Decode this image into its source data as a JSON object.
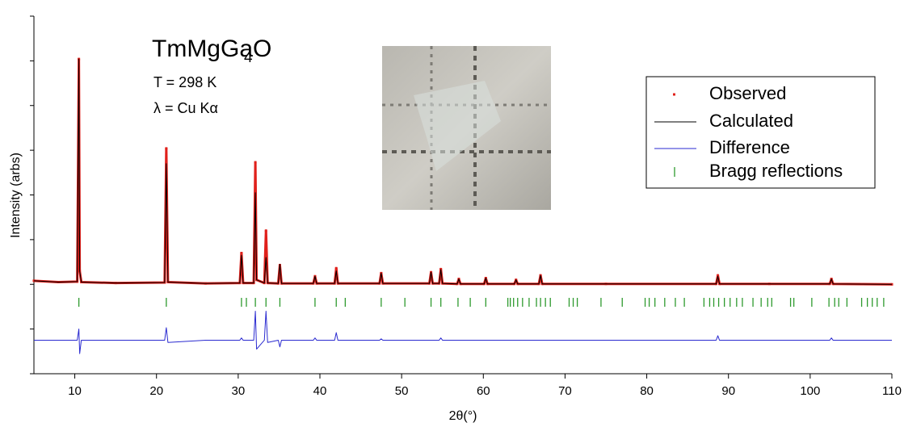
{
  "chart_data": {
    "type": "line",
    "title": "TmMgGaO",
    "title_subscript": "4",
    "annotations": [
      "T = 298 K",
      "λ = Cu Kα"
    ],
    "x_label": "2θ(°)",
    "y_label": "Intensity (arbs)",
    "x": [
      5,
      8,
      10.3,
      10.5,
      10.6,
      10.8,
      15,
      21.0,
      21.2,
      21.4,
      26,
      30.2,
      30.4,
      30.6,
      31.9,
      32.1,
      32.25,
      33.2,
      33.4,
      33.6,
      34.9,
      35.1,
      35.3,
      39.2,
      39.4,
      39.6,
      41.8,
      42.0,
      42.2,
      47.3,
      47.5,
      47.7,
      53.4,
      53.6,
      53.8,
      54.6,
      54.8,
      55.0,
      56.8,
      57.0,
      57.2,
      60.1,
      60.3,
      60.5,
      63.8,
      64.0,
      64.2,
      66.8,
      67.0,
      67.2,
      75,
      88.5,
      88.7,
      88.9,
      95,
      102.4,
      102.6,
      102.8,
      110
    ],
    "series": [
      {
        "name": "Observed",
        "color": "#e0201b",
        "values": [
          0.08,
          0.05,
          0.06,
          5.04,
          0.3,
          0.05,
          0.03,
          0.04,
          3.04,
          0.05,
          0.02,
          0.03,
          0.7,
          0.03,
          0.03,
          2.73,
          0.1,
          0.03,
          1.2,
          0.03,
          0.02,
          0.43,
          0.02,
          0.02,
          0.18,
          0.02,
          0.02,
          0.36,
          0.02,
          0.02,
          0.25,
          0.02,
          0.02,
          0.27,
          0.02,
          0.02,
          0.34,
          0.02,
          0.01,
          0.12,
          0.01,
          0.01,
          0.14,
          0.01,
          0.01,
          0.1,
          0.01,
          0.01,
          0.2,
          0.01,
          0.01,
          0.01,
          0.2,
          0.01,
          0.01,
          0.01,
          0.12,
          0.01,
          0
        ]
      },
      {
        "name": "Calculated",
        "color": "#000000",
        "values": [
          0.08,
          0.05,
          0.06,
          5.04,
          0.3,
          0.05,
          0.03,
          0.04,
          2.7,
          0.05,
          0.02,
          0.03,
          0.65,
          0.03,
          0.03,
          2.05,
          0.1,
          0.03,
          0.6,
          0.03,
          0.02,
          0.45,
          0.02,
          0.02,
          0.18,
          0.02,
          0.02,
          0.3,
          0.02,
          0.02,
          0.25,
          0.02,
          0.02,
          0.27,
          0.02,
          0.02,
          0.33,
          0.02,
          0.01,
          0.12,
          0.01,
          0.01,
          0.14,
          0.01,
          0.01,
          0.1,
          0.01,
          0.01,
          0.2,
          0.01,
          0.01,
          0.01,
          0.18,
          0.01,
          0.01,
          0.01,
          0.12,
          0.01,
          0
        ]
      },
      {
        "name": "Difference",
        "color": "#2a2ad0",
        "values": [
          -1.25,
          -1.25,
          -1.25,
          -1.0,
          -1.55,
          -1.25,
          -1.25,
          -1.25,
          -0.97,
          -1.3,
          -1.25,
          -1.25,
          -1.2,
          -1.25,
          -1.25,
          -0.6,
          -1.45,
          -1.25,
          -0.6,
          -1.3,
          -1.25,
          -1.4,
          -1.25,
          -1.25,
          -1.2,
          -1.25,
          -1.25,
          -1.08,
          -1.25,
          -1.25,
          -1.22,
          -1.25,
          -1.25,
          -1.25,
          -1.25,
          -1.25,
          -1.2,
          -1.25,
          -1.25,
          -1.25,
          -1.25,
          -1.25,
          -1.25,
          -1.25,
          -1.25,
          -1.25,
          -1.25,
          -1.25,
          -1.25,
          -1.25,
          -1.25,
          -1.25,
          -1.15,
          -1.25,
          -1.25,
          -1.25,
          -1.2,
          -1.25,
          -1.25
        ]
      },
      {
        "name": "Bragg reflections",
        "color": "#2e9a2e",
        "positions": [
          10.5,
          21.2,
          30.4,
          31.0,
          32.1,
          33.4,
          35.1,
          39.4,
          42.0,
          43.1,
          47.5,
          50.4,
          53.6,
          54.8,
          56.9,
          58.4,
          60.3,
          63.0,
          63.3,
          63.7,
          64.2,
          64.8,
          65.6,
          66.5,
          67.0,
          67.6,
          68.2,
          70.5,
          71.0,
          71.5,
          74.4,
          77.0,
          79.8,
          80.3,
          81.0,
          82.2,
          83.5,
          84.6,
          87.0,
          87.7,
          88.2,
          88.8,
          89.5,
          90.2,
          91.0,
          91.7,
          93.0,
          94.0,
          94.8,
          95.3,
          97.6,
          98.0,
          100.2,
          102.3,
          103.0,
          103.5,
          104.5,
          106.3,
          107.0,
          107.6,
          108.2,
          109.0
        ]
      }
    ],
    "xlim": [
      5,
      110
    ],
    "xticks": [
      10,
      20,
      30,
      40,
      50,
      60,
      70,
      80,
      90,
      100,
      110
    ],
    "ylim": [
      -2,
      6
    ],
    "yticks": [
      -2,
      -1,
      0,
      1,
      2,
      3,
      4,
      5,
      6
    ]
  }
}
